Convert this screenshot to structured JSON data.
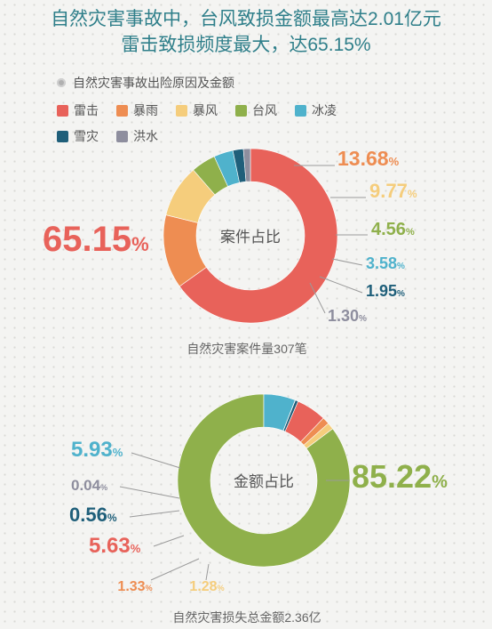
{
  "title_line1": "自然灾害事故中，台风致损金额最高达2.01亿元",
  "title_line2": "雷击致损频度最大，达65.15%",
  "legend_header": "自然灾害事故出险原因及金额",
  "chart_data": [
    {
      "type": "pie",
      "center_label": "案件占比",
      "caption": "自然灾害案件量307笔",
      "categories": [
        "雷击",
        "暴雨",
        "暴风",
        "台风",
        "冰凌",
        "雪灾",
        "洪水"
      ],
      "values": [
        65.15,
        13.68,
        9.77,
        4.56,
        3.58,
        1.95,
        1.3
      ],
      "labels": [
        "65.15",
        "13.68",
        "9.77",
        "4.56",
        "3.58",
        "1.95",
        "1.30"
      ],
      "unit": "%",
      "colors": [
        "#e8625a",
        "#ee8d52",
        "#f5cd7c",
        "#8fb04b",
        "#4fb2cc",
        "#1f5f7a",
        "#8e8e9e"
      ]
    },
    {
      "type": "pie",
      "center_label": "金额占比",
      "caption": "自然灾害损失总金额2.36亿",
      "categories": [
        "台风",
        "暴风",
        "暴雨",
        "雷击",
        "雪灾",
        "洪水",
        "冰凌"
      ],
      "values": [
        85.22,
        1.28,
        1.33,
        5.63,
        0.56,
        0.04,
        5.93
      ],
      "labels": [
        "85.22",
        "1.28",
        "1.33",
        "5.63",
        "0.56",
        "0.04",
        "5.93"
      ],
      "unit": "%",
      "colors": [
        "#8fb04b",
        "#f5cd7c",
        "#ee8d52",
        "#e8625a",
        "#1f5f7a",
        "#8e8e9e",
        "#4fb2cc"
      ]
    }
  ],
  "legend": [
    {
      "name": "雷击",
      "color": "#e8625a"
    },
    {
      "name": "暴雨",
      "color": "#ee8d52"
    },
    {
      "name": "暴风",
      "color": "#f5cd7c"
    },
    {
      "name": "台风",
      "color": "#8fb04b"
    },
    {
      "name": "冰凌",
      "color": "#4fb2cc"
    },
    {
      "name": "雪灾",
      "color": "#1f5f7a"
    },
    {
      "name": "洪水",
      "color": "#8e8e9e"
    }
  ]
}
